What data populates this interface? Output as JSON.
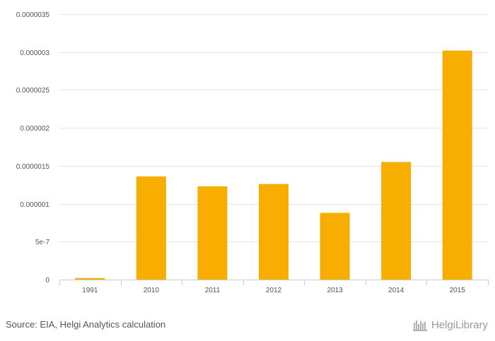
{
  "chart_data": {
    "type": "bar",
    "categories": [
      "1991",
      "2010",
      "2011",
      "2012",
      "2013",
      "2014",
      "2015"
    ],
    "values": [
      2e-08,
      1.36e-06,
      1.23e-06,
      1.26e-06,
      8.8e-07,
      1.55e-06,
      3.02e-06
    ],
    "title": "",
    "xlabel": "",
    "ylabel": "",
    "ylim": [
      0,
      3.5e-06
    ],
    "yticks": [
      0,
      5e-07,
      1e-06,
      1.5e-06,
      2e-06,
      2.5e-06,
      3e-06,
      3.5e-06
    ],
    "ytick_labels": [
      "0",
      "5e-7",
      "0.000001",
      "0.0000015",
      "0.000002",
      "0.0000025",
      "0.000003",
      "0.0000035"
    ],
    "bar_color": "#f7ae00",
    "grid": true
  },
  "footer": {
    "source": "Source: EIA, Helgi Analytics calculation",
    "brand": "HelgiLibrary"
  }
}
